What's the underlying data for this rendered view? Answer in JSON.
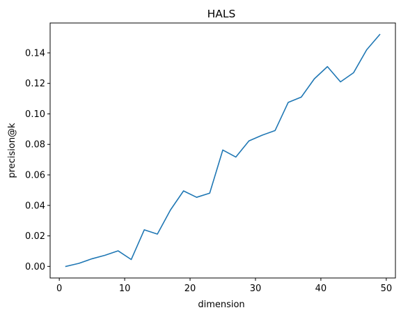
{
  "chart_data": {
    "type": "line",
    "title": "HALS",
    "xlabel": "dimension",
    "ylabel": "precision@k",
    "xlim": [
      -1.4,
      51.4
    ],
    "ylim": [
      -0.0076,
      0.1596
    ],
    "grid": false,
    "x_ticks": [
      0,
      10,
      20,
      30,
      40,
      50
    ],
    "x_tick_labels": [
      "0",
      "10",
      "20",
      "30",
      "40",
      "50"
    ],
    "y_ticks": [
      0.0,
      0.02,
      0.04,
      0.06,
      0.08,
      0.1,
      0.12,
      0.14
    ],
    "y_tick_labels": [
      "0.00",
      "0.02",
      "0.04",
      "0.06",
      "0.08",
      "0.10",
      "0.12",
      "0.14"
    ],
    "series": [
      {
        "color": "#1f77b4",
        "x": [
          1,
          3,
          5,
          7,
          9,
          11,
          13,
          15,
          17,
          19,
          21,
          23,
          25,
          27,
          29,
          31,
          33,
          35,
          37,
          39,
          41,
          43,
          45,
          47,
          49
        ],
        "y": [
          0.0,
          0.002,
          0.005,
          0.0073,
          0.0102,
          0.0045,
          0.024,
          0.0212,
          0.037,
          0.0495,
          0.0453,
          0.048,
          0.0763,
          0.0717,
          0.0823,
          0.086,
          0.0891,
          0.1075,
          0.111,
          0.123,
          0.131,
          0.121,
          0.127,
          0.142,
          0.152
        ]
      }
    ]
  }
}
